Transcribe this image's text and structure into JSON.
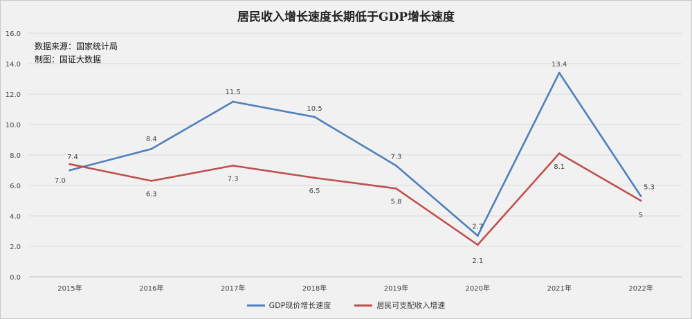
{
  "chart_data": {
    "type": "line",
    "title": "居民收入增长速度长期低于GDP增长速度",
    "notes": [
      "数据来源：国家统计局",
      "制图：国证大数据"
    ],
    "categories": [
      "2015年",
      "2016年",
      "2017年",
      "2018年",
      "2019年",
      "2020年",
      "2021年",
      "2022年"
    ],
    "series": [
      {
        "name": "GDP现价增长速度",
        "color": "#4e7fbe",
        "values": [
          7.0,
          8.4,
          11.5,
          10.5,
          7.3,
          2.7,
          13.4,
          5.3
        ],
        "labels": [
          "7.0",
          "8.4",
          "11.5",
          "10.5",
          "7.3",
          "2.7",
          "13.4",
          "5.3"
        ]
      },
      {
        "name": "居民可支配收入增速",
        "color": "#c0504d",
        "values": [
          7.4,
          6.3,
          7.3,
          6.5,
          5.8,
          2.1,
          8.1,
          5
        ],
        "labels": [
          "7.4",
          "6.3",
          "7.3",
          "6.5",
          "5.8",
          "2.1",
          "8.1",
          "5"
        ]
      }
    ],
    "ylim": [
      0,
      16
    ],
    "yticks": [
      "0.0",
      "2.0",
      "4.0",
      "6.0",
      "8.0",
      "10.0",
      "12.0",
      "14.0",
      "16.0"
    ],
    "grid": true,
    "legend_position": "bottom"
  }
}
